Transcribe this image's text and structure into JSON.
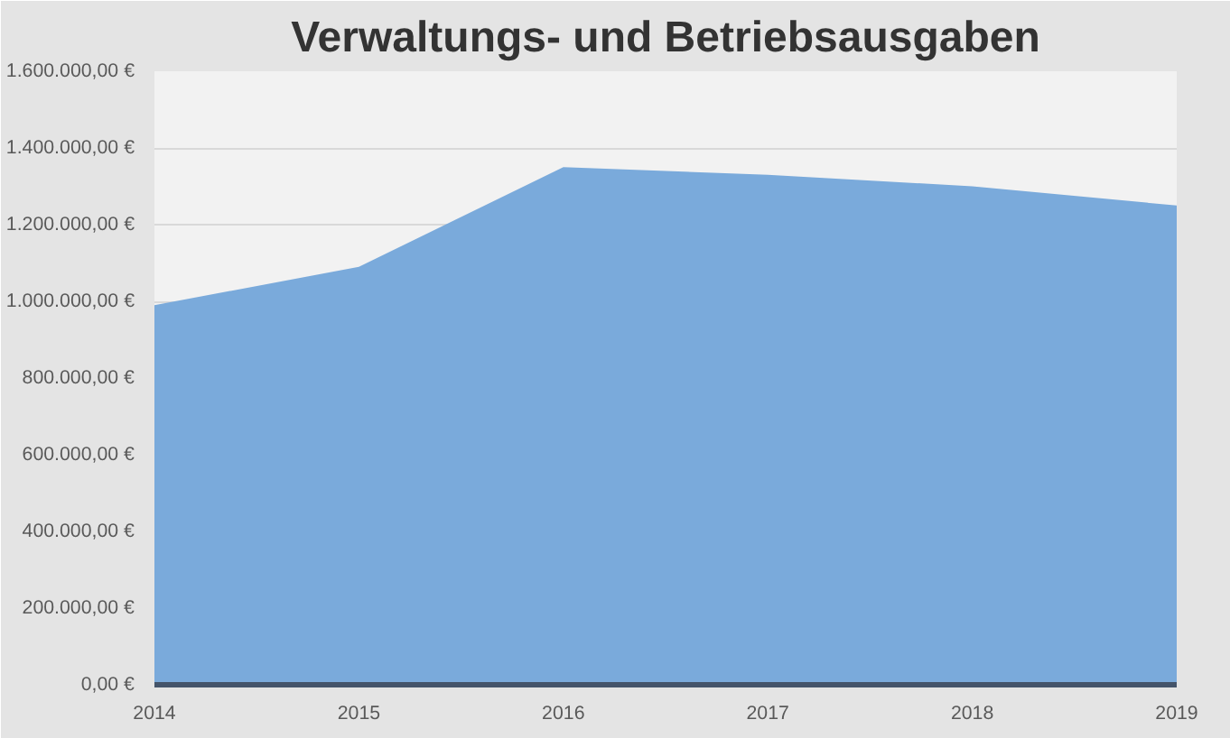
{
  "chart_data": {
    "type": "area",
    "title": "Verwaltungs- und Betriebsausgaben",
    "categories": [
      "2014",
      "2015",
      "2016",
      "2017",
      "2018",
      "2019"
    ],
    "series": [
      {
        "color": "#7aaadb",
        "values": [
          990000,
          1090000,
          1350000,
          1330000,
          1300000,
          1250000
        ]
      }
    ],
    "ylim": [
      0,
      1600000
    ],
    "yticks": [
      {
        "value": 0,
        "label": "0,00 €"
      },
      {
        "value": 200000,
        "label": "200.000,00 €"
      },
      {
        "value": 400000,
        "label": "400.000,00 €"
      },
      {
        "value": 600000,
        "label": "600.000,00 €"
      },
      {
        "value": 800000,
        "label": "800.000,00 €"
      },
      {
        "value": 1000000,
        "label": "1.000.000,00 €"
      },
      {
        "value": 1200000,
        "label": "1.200.000,00 €"
      },
      {
        "value": 1400000,
        "label": "1.400.000,00 €"
      },
      {
        "value": 1600000,
        "label": "1.600.000,00 €"
      }
    ],
    "grid": "y"
  }
}
